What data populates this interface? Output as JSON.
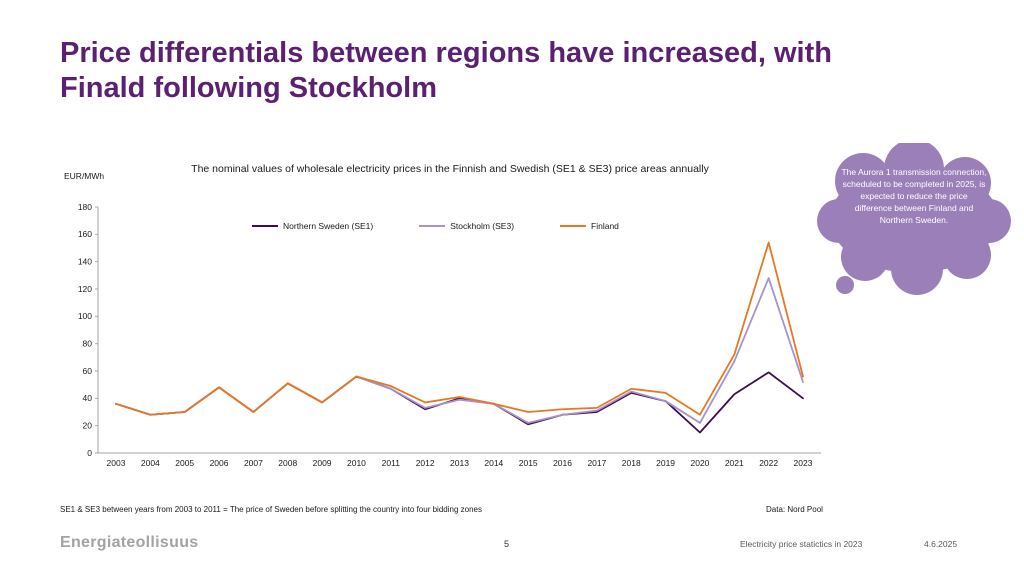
{
  "slide": {
    "title": "Price differentials between regions have increased, with Finald following Stockholm",
    "footnote": "SE1 & SE3 between years from 2003 to 2011 = The price of Sweden before splitting the country into four bidding zones",
    "data_source": "Data: Nord Pool",
    "logo": "Energiateollisuus",
    "page_number": "5",
    "footer_right": "Electricity price statictics in 2023",
    "date": "4.6.2025",
    "title_color": "#5b2071"
  },
  "callout": {
    "text": "The Aurora 1 transmission connection, scheduled to be completed in 2025, is expected to reduce the price difference between Finland and Northern Sweden.",
    "color": "#9b7fb8",
    "text_color": "#ffffff"
  },
  "chart_data": {
    "type": "line",
    "title": "The nominal values of wholesale electricity prices in the Finnish and Swedish (SE1 & SE3) price areas annually",
    "ylabel": "EUR/MWh",
    "ylim": [
      0,
      180
    ],
    "ytick_step": 20,
    "grid": false,
    "legend_position": "top",
    "categories": [
      "2003",
      "2004",
      "2005",
      "2006",
      "2007",
      "2008",
      "2009",
      "2010",
      "2011",
      "2012",
      "2013",
      "2014",
      "2015",
      "2016",
      "2017",
      "2018",
      "2019",
      "2020",
      "2021",
      "2022",
      "2023"
    ],
    "series": [
      {
        "name": "Northern Sweden (SE1)",
        "color": "#3b1053",
        "values": [
          36,
          28,
          30,
          48,
          30,
          51,
          37,
          56,
          47,
          32,
          40,
          36,
          21,
          28,
          30,
          44,
          38,
          15,
          43,
          59,
          40
        ]
      },
      {
        "name": "Stockholm (SE3)",
        "color": "#a893c9",
        "values": [
          36,
          28,
          30,
          48,
          30,
          51,
          37,
          56,
          47,
          33,
          39,
          36,
          22,
          28,
          31,
          45,
          38,
          22,
          67,
          128,
          52
        ]
      },
      {
        "name": "Finland",
        "color": "#e87722",
        "values": [
          36,
          28,
          30,
          48,
          30,
          51,
          37,
          56,
          49,
          37,
          41,
          36,
          30,
          32,
          33,
          47,
          44,
          28,
          72,
          154,
          56
        ]
      }
    ]
  }
}
